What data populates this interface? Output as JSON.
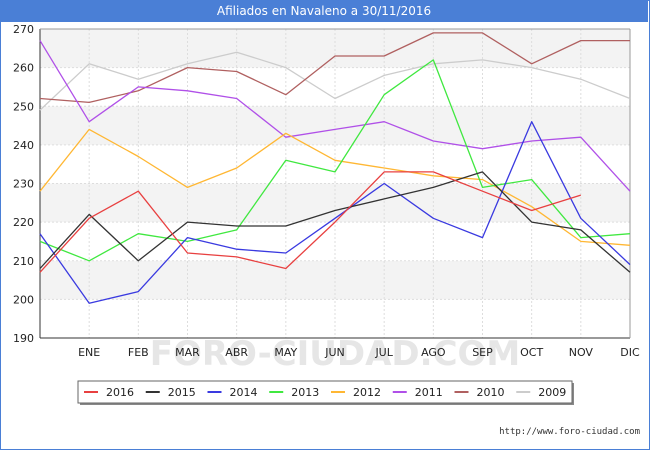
{
  "title": "Afiliados en Navaleno a 30/11/2016",
  "source": "http://www.foro-ciudad.com",
  "watermark": "FORO-CIUDAD.COM",
  "chart_data": {
    "type": "line",
    "categories": [
      "DIC",
      "ENE",
      "FEB",
      "MAR",
      "ABR",
      "MAY",
      "JUN",
      "JUL",
      "AGO",
      "SEP",
      "OCT",
      "NOV",
      "DIC"
    ],
    "x_tick_labels": [
      "ENE",
      "FEB",
      "MAR",
      "ABR",
      "MAY",
      "JUN",
      "JUL",
      "AGO",
      "SEP",
      "OCT",
      "NOV",
      "DIC"
    ],
    "ylim": [
      190,
      270
    ],
    "yticks": [
      190,
      200,
      210,
      220,
      230,
      240,
      250,
      260,
      270
    ],
    "grid": true,
    "legend_position": "bottom",
    "series": [
      {
        "name": "2016",
        "color": "#e84040",
        "values": [
          207,
          221,
          228,
          212,
          211,
          208,
          220,
          233,
          233,
          228,
          223,
          227,
          null
        ]
      },
      {
        "name": "2015",
        "color": "#333333",
        "values": [
          208,
          222,
          210,
          220,
          219,
          219,
          223,
          226,
          229,
          233,
          220,
          218,
          207
        ]
      },
      {
        "name": "2014",
        "color": "#3a3ae0",
        "values": [
          217,
          199,
          202,
          216,
          213,
          212,
          221,
          230,
          221,
          216,
          246,
          221,
          209
        ]
      },
      {
        "name": "2013",
        "color": "#40e840",
        "values": [
          215,
          210,
          217,
          215,
          218,
          236,
          233,
          253,
          262,
          229,
          231,
          216,
          217
        ]
      },
      {
        "name": "2012",
        "color": "#ffb733",
        "values": [
          228,
          244,
          237,
          229,
          234,
          243,
          236,
          234,
          232,
          231,
          224,
          215,
          214
        ]
      },
      {
        "name": "2011",
        "color": "#b050e8",
        "values": [
          267,
          246,
          255,
          254,
          252,
          242,
          244,
          246,
          241,
          239,
          241,
          242,
          228
        ]
      },
      {
        "name": "2010",
        "color": "#b06060",
        "values": [
          252,
          251,
          254,
          260,
          259,
          253,
          263,
          263,
          269,
          269,
          261,
          267,
          267
        ]
      },
      {
        "name": "2009",
        "color": "#cccccc",
        "values": [
          249,
          261,
          257,
          261,
          264,
          260,
          252,
          258,
          261,
          262,
          260,
          257,
          252
        ]
      }
    ]
  }
}
